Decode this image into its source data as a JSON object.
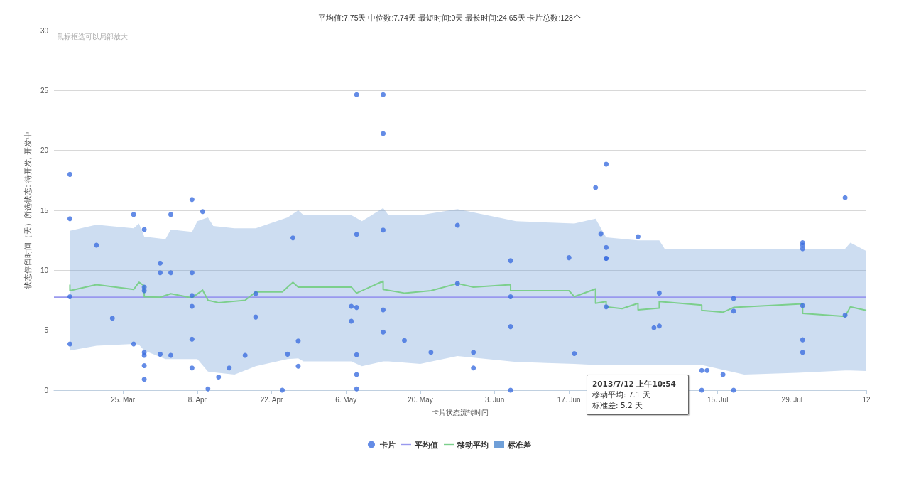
{
  "chart_data": {
    "type": "scatter",
    "title": "平均值:7.75天 中位数:7.74天 最短时间:0天 最长时间:24.65天 卡片总数:128个",
    "xlabel": "卡片状态流转时间",
    "ylabel": "状态停留时间（天）所选状态: 待开发, 开发中",
    "annotations": [
      "鼠标框选可以局部放大",
      "2013/7/12 上午10:54",
      "移动平均: 7.1 天",
      "标准差: 5.2 天"
    ],
    "xlim": [
      "2013-03-12",
      "2013-08-12"
    ],
    "xticks": [
      {
        "value": "2013-03-25",
        "label": "25. Mar"
      },
      {
        "value": "2013-04-08",
        "label": "8. Apr"
      },
      {
        "value": "2013-04-22",
        "label": "22. Apr"
      },
      {
        "value": "2013-05-06",
        "label": "6. May"
      },
      {
        "value": "2013-05-20",
        "label": "20. May"
      },
      {
        "value": "2013-06-03",
        "label": "3. Jun"
      },
      {
        "value": "2013-06-17",
        "label": "17. Jun"
      },
      {
        "value": "2013-07-01",
        "label": null
      },
      {
        "value": "2013-07-15",
        "label": "15. Jul"
      },
      {
        "value": "2013-07-29",
        "label": "29. Jul"
      },
      {
        "value": "2013-08-12",
        "label": "12"
      }
    ],
    "ylim": [
      0,
      30
    ],
    "yticks": [
      0,
      5,
      10,
      15,
      20,
      25,
      30
    ],
    "grid": "y",
    "legend": "bottom",
    "marker": "circle",
    "series": [
      {
        "name": "卡片",
        "color": "#3d6fe0",
        "x": [
          "2013-03-15",
          "2013-03-15",
          "2013-03-15",
          "2013-03-15",
          "2013-03-20",
          "2013-03-23",
          "2013-03-27",
          "2013-03-27",
          "2013-03-29",
          "2013-03-29",
          "2013-03-29",
          "2013-03-29",
          "2013-03-29",
          "2013-03-29",
          "2013-03-29",
          "2013-04-01",
          "2013-04-01",
          "2013-04-01",
          "2013-04-03",
          "2013-04-03",
          "2013-04-03",
          "2013-04-07",
          "2013-04-07",
          "2013-04-07",
          "2013-04-07",
          "2013-04-07",
          "2013-04-07",
          "2013-04-09",
          "2013-04-10",
          "2013-04-12",
          "2013-04-14",
          "2013-04-17",
          "2013-04-19",
          "2013-04-19",
          "2013-04-24",
          "2013-04-25",
          "2013-04-26",
          "2013-04-27",
          "2013-04-27",
          "2013-05-07",
          "2013-05-07",
          "2013-05-08",
          "2013-05-08",
          "2013-05-08",
          "2013-05-08",
          "2013-05-08",
          "2013-05-08",
          "2013-05-13",
          "2013-05-13",
          "2013-05-13",
          "2013-05-13",
          "2013-05-13",
          "2013-05-17",
          "2013-05-22",
          "2013-05-27",
          "2013-05-27",
          "2013-05-30",
          "2013-05-30",
          "2013-06-06",
          "2013-06-06",
          "2013-06-06",
          "2013-06-06",
          "2013-06-17",
          "2013-06-18",
          "2013-06-22",
          "2013-06-23",
          "2013-06-24",
          "2013-06-24",
          "2013-06-24",
          "2013-06-24",
          "2013-06-24",
          "2013-06-30",
          "2013-07-03",
          "2013-07-04",
          "2013-07-04",
          "2013-07-12",
          "2013-07-13",
          "2013-07-12",
          "2013-07-16",
          "2013-07-18",
          "2013-07-18",
          "2013-07-18",
          "2013-07-31",
          "2013-07-31",
          "2013-07-31",
          "2013-07-31",
          "2013-07-31",
          "2013-07-31",
          "2013-08-08",
          "2013-08-08"
        ],
        "values": [
          18.0,
          14.3,
          7.8,
          3.85,
          12.1,
          6.0,
          3.85,
          14.65,
          13.4,
          8.6,
          8.3,
          3.15,
          2.9,
          2.05,
          0.9,
          10.6,
          9.8,
          3.0,
          14.65,
          9.8,
          2.9,
          15.9,
          9.8,
          7.9,
          7.0,
          4.25,
          1.85,
          14.9,
          0.1,
          1.1,
          1.85,
          2.9,
          8.05,
          6.1,
          0.0,
          3.0,
          12.7,
          4.1,
          2.0,
          7.0,
          5.75,
          24.65,
          13.0,
          6.9,
          2.95,
          1.3,
          0.1,
          24.65,
          21.4,
          13.35,
          6.7,
          4.85,
          4.15,
          3.15,
          13.75,
          8.9,
          1.85,
          3.15,
          10.8,
          7.8,
          5.3,
          0.0,
          11.05,
          3.05,
          16.9,
          13.05,
          18.85,
          11.0,
          11.9,
          11.0,
          6.95,
          12.8,
          5.2,
          5.35,
          8.1,
          1.65,
          1.65,
          0.0,
          1.3,
          7.65,
          6.6,
          0.0,
          12.1,
          12.3,
          11.8,
          7.05,
          4.2,
          3.15,
          6.25,
          16.05
        ]
      },
      {
        "name": "平均值",
        "type": "line",
        "marker": "none",
        "color": "#9999ee",
        "x": [
          "2013-03-12",
          "2013-08-12"
        ],
        "values": [
          7.75,
          7.75
        ]
      },
      {
        "name": "移动平均",
        "type": "line",
        "marker": "none",
        "color": "#7ccf8c",
        "x": [
          "2013-03-15",
          "2013-03-15",
          "2013-03-20",
          "2013-03-27",
          "2013-03-28",
          "2013-03-29",
          "2013-03-29",
          "2013-04-01",
          "2013-04-03",
          "2013-04-07",
          "2013-04-09",
          "2013-04-10",
          "2013-04-12",
          "2013-04-17",
          "2013-04-19",
          "2013-04-24",
          "2013-04-26",
          "2013-04-27",
          "2013-05-07",
          "2013-05-08",
          "2013-05-13",
          "2013-05-13",
          "2013-05-17",
          "2013-05-22",
          "2013-05-27",
          "2013-05-30",
          "2013-06-06",
          "2013-06-06",
          "2013-06-17",
          "2013-06-18",
          "2013-06-22",
          "2013-06-22",
          "2013-06-24",
          "2013-06-24",
          "2013-06-27",
          "2013-06-30",
          "2013-06-30",
          "2013-07-04",
          "2013-07-04",
          "2013-07-12",
          "2013-07-12",
          "2013-07-16",
          "2013-07-18",
          "2013-07-31",
          "2013-07-31",
          "2013-08-08",
          "2013-08-09",
          "2013-08-12"
        ],
        "values": [
          8.8,
          8.3,
          8.8,
          8.4,
          9.0,
          8.7,
          7.8,
          7.75,
          8.05,
          7.7,
          8.35,
          7.5,
          7.3,
          7.5,
          8.2,
          8.2,
          9.0,
          8.6,
          8.6,
          8.1,
          9.1,
          8.4,
          8.1,
          8.3,
          8.9,
          8.6,
          8.8,
          8.3,
          8.3,
          7.8,
          8.45,
          7.25,
          7.4,
          6.95,
          6.8,
          7.25,
          6.7,
          6.85,
          7.4,
          7.1,
          6.65,
          6.5,
          6.9,
          7.2,
          6.4,
          6.15,
          6.95,
          6.65
        ]
      },
      {
        "name": "标准差",
        "type": "area",
        "color": "#6f9fd8",
        "x": [
          "2013-03-15",
          "2013-03-20",
          "2013-03-27",
          "2013-03-28",
          "2013-03-29",
          "2013-04-02",
          "2013-04-03",
          "2013-04-07",
          "2013-04-08",
          "2013-04-10",
          "2013-04-11",
          "2013-04-15",
          "2013-04-19",
          "2013-04-25",
          "2013-04-27",
          "2013-04-28",
          "2013-05-07",
          "2013-05-09",
          "2013-05-13",
          "2013-05-14",
          "2013-05-20",
          "2013-05-27",
          "2013-06-07",
          "2013-06-18",
          "2013-06-22",
          "2013-06-24",
          "2013-06-30",
          "2013-07-04",
          "2013-07-05",
          "2013-07-12",
          "2013-07-20",
          "2013-07-30",
          "2013-08-08",
          "2013-08-09",
          "2013-08-12"
        ],
        "values": [
          null,
          null,
          null,
          null,
          null,
          null,
          null,
          null,
          null,
          null,
          null,
          null,
          null,
          null,
          null,
          null,
          null,
          null,
          null,
          null,
          null,
          null,
          null,
          null,
          null,
          null,
          null,
          null,
          null,
          null,
          null,
          null,
          null,
          null,
          null
        ],
        "upper": [
          13.3,
          13.8,
          13.5,
          13.9,
          12.8,
          12.6,
          13.4,
          13.2,
          14.1,
          14.4,
          13.7,
          13.5,
          13.5,
          14.4,
          15.0,
          14.6,
          14.6,
          14.1,
          15.2,
          14.6,
          14.6,
          15.1,
          14.1,
          13.9,
          14.3,
          12.75,
          12.5,
          12.5,
          11.8,
          11.8,
          11.8,
          11.8,
          11.8,
          12.3,
          11.6
        ],
        "lower": [
          3.3,
          3.7,
          3.85,
          3.8,
          3.3,
          2.6,
          2.6,
          2.6,
          2.6,
          1.55,
          1.5,
          1.3,
          2.0,
          2.6,
          2.65,
          2.4,
          2.4,
          2.0,
          2.4,
          2.4,
          2.2,
          2.85,
          2.35,
          2.2,
          2.1,
          2.1,
          2.1,
          2.1,
          2.1,
          2.1,
          1.3,
          1.45,
          1.65,
          1.65,
          1.6
        ]
      }
    ]
  }
}
